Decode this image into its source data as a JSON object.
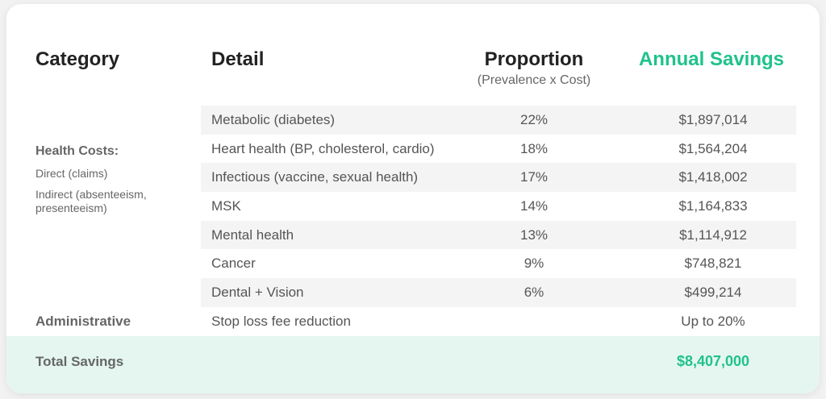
{
  "header": {
    "columns": [
      "Category",
      "Detail",
      "Proportion",
      "Annual Savings"
    ],
    "proportion_note": "(Prevalence x Cost)"
  },
  "category": {
    "title": "Health Costs:",
    "items": [
      "Direct (claims)",
      "Indirect (absenteeism, presenteeism)"
    ]
  },
  "table": {
    "rows": [
      [
        "Metabolic (diabetes)",
        "22%",
        "$1,897,014"
      ],
      [
        "Heart health (BP, cholesterol, cardio)",
        "18%",
        "$1,564,204"
      ],
      [
        "Infectious (vaccine, sexual health)",
        "17%",
        "$1,418,002"
      ],
      [
        "MSK",
        "14%",
        "$1,164,833"
      ],
      [
        "Mental health",
        "13%",
        "$1,114,912"
      ],
      [
        "Cancer",
        "9%",
        "$748,821"
      ],
      [
        "Dental + Vision",
        "6%",
        "$499,214"
      ]
    ]
  },
  "administrative": {
    "label": "Administrative",
    "detail": "Stop loss fee reduction",
    "savings": "Up to 20%"
  },
  "total": {
    "label": "Total Savings",
    "value": "$8,407,000"
  }
}
